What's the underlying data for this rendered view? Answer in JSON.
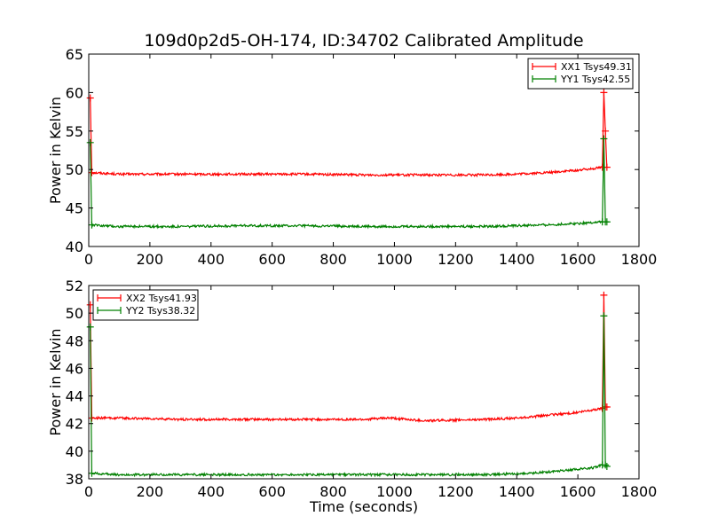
{
  "chart_data": [
    {
      "type": "line",
      "title": "109d0p2d5-OH-174, ID:34702 Calibrated Amplitude",
      "xlabel": "",
      "ylabel": "Power in Kelvin",
      "xlim": [
        0,
        1800
      ],
      "ylim": [
        40,
        65
      ],
      "x_ticks": [
        0,
        200,
        400,
        600,
        800,
        1000,
        1200,
        1400,
        1600,
        1800
      ],
      "y_ticks": [
        40,
        45,
        50,
        55,
        60,
        65
      ],
      "legend_position": "top-right",
      "series": [
        {
          "name": "XX1 Tsys49.31",
          "color": "#ff0000",
          "points": [
            [
              5,
              59.3
            ],
            [
              10,
              49.6
            ],
            [
              100,
              49.4
            ],
            [
              300,
              49.4
            ],
            [
              500,
              49.4
            ],
            [
              700,
              49.4
            ],
            [
              900,
              49.3
            ],
            [
              1000,
              49.3
            ],
            [
              1100,
              49.3
            ],
            [
              1300,
              49.3
            ],
            [
              1400,
              49.4
            ],
            [
              1500,
              49.6
            ],
            [
              1600,
              49.9
            ],
            [
              1680,
              50.3
            ],
            [
              1685,
              60.0
            ],
            [
              1690,
              55.0
            ],
            [
              1695,
              50.3
            ]
          ]
        },
        {
          "name": "YY1 Tsys42.55",
          "color": "#008000",
          "points": [
            [
              5,
              53.5
            ],
            [
              10,
              42.8
            ],
            [
              100,
              42.6
            ],
            [
              300,
              42.6
            ],
            [
              500,
              42.7
            ],
            [
              700,
              42.7
            ],
            [
              900,
              42.6
            ],
            [
              1100,
              42.6
            ],
            [
              1300,
              42.6
            ],
            [
              1500,
              42.8
            ],
            [
              1600,
              43.0
            ],
            [
              1680,
              43.2
            ],
            [
              1685,
              54.0
            ],
            [
              1690,
              43.2
            ],
            [
              1695,
              43.2
            ]
          ]
        }
      ]
    },
    {
      "type": "line",
      "title": "",
      "xlabel": "Time (seconds)",
      "ylabel": "Power in Kelvin",
      "xlim": [
        0,
        1800
      ],
      "ylim": [
        38,
        52
      ],
      "x_ticks": [
        0,
        200,
        400,
        600,
        800,
        1000,
        1200,
        1400,
        1600,
        1800
      ],
      "y_ticks": [
        38,
        40,
        42,
        44,
        46,
        48,
        50,
        52
      ],
      "legend_position": "top-left",
      "series": [
        {
          "name": "XX2 Tsys41.93",
          "color": "#ff0000",
          "points": [
            [
              5,
              50.6
            ],
            [
              10,
              42.4
            ],
            [
              100,
              42.4
            ],
            [
              300,
              42.3
            ],
            [
              500,
              42.3
            ],
            [
              700,
              42.3
            ],
            [
              900,
              42.3
            ],
            [
              980,
              42.4
            ],
            [
              1100,
              42.2
            ],
            [
              1300,
              42.3
            ],
            [
              1400,
              42.4
            ],
            [
              1500,
              42.6
            ],
            [
              1600,
              42.8
            ],
            [
              1680,
              43.1
            ],
            [
              1685,
              51.3
            ],
            [
              1690,
              43.2
            ],
            [
              1695,
              43.2
            ]
          ]
        },
        {
          "name": "YY2 Tsys38.32",
          "color": "#008000",
          "points": [
            [
              5,
              49.0
            ],
            [
              10,
              38.4
            ],
            [
              100,
              38.3
            ],
            [
              300,
              38.3
            ],
            [
              500,
              38.3
            ],
            [
              700,
              38.3
            ],
            [
              900,
              38.3
            ],
            [
              1100,
              38.3
            ],
            [
              1300,
              38.3
            ],
            [
              1450,
              38.4
            ],
            [
              1550,
              38.6
            ],
            [
              1650,
              38.8
            ],
            [
              1680,
              39.0
            ],
            [
              1685,
              49.8
            ],
            [
              1690,
              39.0
            ],
            [
              1695,
              38.9
            ]
          ]
        }
      ]
    }
  ]
}
